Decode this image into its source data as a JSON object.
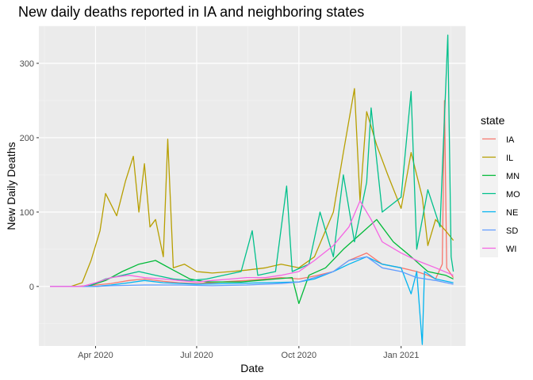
{
  "chart_data": {
    "type": "line",
    "title": "New daily deaths reported in IA and neighboring states",
    "xlabel": "Date",
    "ylabel": "New Daily Deaths",
    "x_ticks": [
      "Apr 2020",
      "Jul 2020",
      "Oct 2020",
      "Jan 2021"
    ],
    "y_ticks": [
      0,
      100,
      200,
      300
    ],
    "xlim": [
      "2020-02-10",
      "2021-02-28"
    ],
    "ylim": [
      -80,
      350
    ],
    "grid": true,
    "legend_title": "state",
    "legend_position": "right",
    "series_note": "approximate weekly/peak readings in data units",
    "series": [
      {
        "name": "IA",
        "color": "#F8766D",
        "points": [
          [
            "2020-02-20",
            0
          ],
          [
            "2020-03-15",
            0
          ],
          [
            "2020-04-01",
            2
          ],
          [
            "2020-04-15",
            4
          ],
          [
            "2020-05-01",
            8
          ],
          [
            "2020-05-15",
            10
          ],
          [
            "2020-06-01",
            7
          ],
          [
            "2020-06-15",
            5
          ],
          [
            "2020-07-01",
            4
          ],
          [
            "2020-07-15",
            5
          ],
          [
            "2020-08-01",
            7
          ],
          [
            "2020-08-15",
            8
          ],
          [
            "2020-09-01",
            10
          ],
          [
            "2020-09-15",
            12
          ],
          [
            "2020-10-01",
            10
          ],
          [
            "2020-10-15",
            14
          ],
          [
            "2020-11-01",
            20
          ],
          [
            "2020-11-15",
            35
          ],
          [
            "2020-12-01",
            45
          ],
          [
            "2020-12-15",
            30
          ],
          [
            "2021-01-01",
            25
          ],
          [
            "2021-01-15",
            20
          ],
          [
            "2021-01-25",
            15
          ],
          [
            "2021-02-01",
            10
          ],
          [
            "2021-02-07",
            30
          ],
          [
            "2021-02-09",
            250
          ],
          [
            "2021-02-11",
            25
          ],
          [
            "2021-02-17",
            12
          ]
        ]
      },
      {
        "name": "IL",
        "color": "#B79F00",
        "points": [
          [
            "2020-02-20",
            0
          ],
          [
            "2020-03-10",
            0
          ],
          [
            "2020-03-20",
            5
          ],
          [
            "2020-03-28",
            35
          ],
          [
            "2020-04-05",
            75
          ],
          [
            "2020-04-10",
            125
          ],
          [
            "2020-04-20",
            95
          ],
          [
            "2020-04-28",
            142
          ],
          [
            "2020-05-05",
            175
          ],
          [
            "2020-05-10",
            100
          ],
          [
            "2020-05-15",
            165
          ],
          [
            "2020-05-20",
            80
          ],
          [
            "2020-05-25",
            90
          ],
          [
            "2020-06-01",
            40
          ],
          [
            "2020-06-05",
            198
          ],
          [
            "2020-06-10",
            25
          ],
          [
            "2020-06-20",
            30
          ],
          [
            "2020-07-01",
            20
          ],
          [
            "2020-07-15",
            18
          ],
          [
            "2020-08-01",
            20
          ],
          [
            "2020-08-15",
            22
          ],
          [
            "2020-09-01",
            25
          ],
          [
            "2020-09-15",
            30
          ],
          [
            "2020-10-01",
            25
          ],
          [
            "2020-10-15",
            40
          ],
          [
            "2020-11-01",
            100
          ],
          [
            "2020-11-10",
            180
          ],
          [
            "2020-11-20",
            266
          ],
          [
            "2020-11-25",
            115
          ],
          [
            "2020-12-01",
            235
          ],
          [
            "2020-12-10",
            190
          ],
          [
            "2020-12-20",
            150
          ],
          [
            "2021-01-01",
            105
          ],
          [
            "2021-01-10",
            180
          ],
          [
            "2021-01-20",
            120
          ],
          [
            "2021-01-25",
            55
          ],
          [
            "2021-02-01",
            90
          ],
          [
            "2021-02-10",
            75
          ],
          [
            "2021-02-17",
            62
          ]
        ]
      },
      {
        "name": "MN",
        "color": "#00BA38",
        "points": [
          [
            "2020-02-20",
            0
          ],
          [
            "2020-03-25",
            0
          ],
          [
            "2020-04-10",
            8
          ],
          [
            "2020-04-25",
            20
          ],
          [
            "2020-05-10",
            30
          ],
          [
            "2020-05-25",
            35
          ],
          [
            "2020-06-10",
            22
          ],
          [
            "2020-06-25",
            10
          ],
          [
            "2020-07-10",
            6
          ],
          [
            "2020-07-25",
            6
          ],
          [
            "2020-08-10",
            6
          ],
          [
            "2020-08-25",
            8
          ],
          [
            "2020-09-10",
            10
          ],
          [
            "2020-09-25",
            12
          ],
          [
            "2020-10-01",
            -23
          ],
          [
            "2020-10-10",
            15
          ],
          [
            "2020-10-25",
            25
          ],
          [
            "2020-11-10",
            50
          ],
          [
            "2020-11-25",
            70
          ],
          [
            "2020-12-10",
            90
          ],
          [
            "2020-12-25",
            60
          ],
          [
            "2021-01-10",
            40
          ],
          [
            "2021-01-25",
            20
          ],
          [
            "2021-02-10",
            15
          ],
          [
            "2021-02-17",
            10
          ]
        ]
      },
      {
        "name": "MO",
        "color": "#00C08B",
        "points": [
          [
            "2020-02-20",
            0
          ],
          [
            "2020-03-25",
            0
          ],
          [
            "2020-04-10",
            10
          ],
          [
            "2020-04-25",
            15
          ],
          [
            "2020-05-10",
            20
          ],
          [
            "2020-05-25",
            15
          ],
          [
            "2020-06-10",
            10
          ],
          [
            "2020-06-25",
            8
          ],
          [
            "2020-07-10",
            10
          ],
          [
            "2020-07-25",
            15
          ],
          [
            "2020-08-10",
            20
          ],
          [
            "2020-08-20",
            75
          ],
          [
            "2020-08-25",
            15
          ],
          [
            "2020-09-10",
            20
          ],
          [
            "2020-09-20",
            135
          ],
          [
            "2020-09-25",
            20
          ],
          [
            "2020-10-10",
            30
          ],
          [
            "2020-10-20",
            100
          ],
          [
            "2020-11-01",
            40
          ],
          [
            "2020-11-10",
            150
          ],
          [
            "2020-11-20",
            60
          ],
          [
            "2020-12-01",
            140
          ],
          [
            "2020-12-05",
            240
          ],
          [
            "2020-12-15",
            100
          ],
          [
            "2021-01-01",
            120
          ],
          [
            "2021-01-10",
            262
          ],
          [
            "2021-01-15",
            50
          ],
          [
            "2021-01-25",
            130
          ],
          [
            "2021-02-05",
            80
          ],
          [
            "2021-02-12",
            338
          ],
          [
            "2021-02-15",
            40
          ],
          [
            "2021-02-17",
            20
          ]
        ]
      },
      {
        "name": "NE",
        "color": "#00B4F0",
        "points": [
          [
            "2020-02-20",
            0
          ],
          [
            "2020-04-01",
            0
          ],
          [
            "2020-04-15",
            2
          ],
          [
            "2020-05-01",
            5
          ],
          [
            "2020-05-15",
            8
          ],
          [
            "2020-06-01",
            5
          ],
          [
            "2020-07-01",
            3
          ],
          [
            "2020-08-01",
            4
          ],
          [
            "2020-09-01",
            5
          ],
          [
            "2020-10-01",
            6
          ],
          [
            "2020-10-15",
            10
          ],
          [
            "2020-11-01",
            20
          ],
          [
            "2020-11-15",
            30
          ],
          [
            "2020-12-01",
            40
          ],
          [
            "2020-12-15",
            30
          ],
          [
            "2021-01-01",
            25
          ],
          [
            "2021-01-10",
            -10
          ],
          [
            "2021-01-15",
            20
          ],
          [
            "2021-01-20",
            -78
          ],
          [
            "2021-01-22",
            20
          ],
          [
            "2021-02-01",
            10
          ],
          [
            "2021-02-17",
            5
          ]
        ]
      },
      {
        "name": "SD",
        "color": "#619CFF",
        "points": [
          [
            "2020-02-20",
            0
          ],
          [
            "2020-04-01",
            0
          ],
          [
            "2020-04-15",
            1
          ],
          [
            "2020-05-15",
            2
          ],
          [
            "2020-06-15",
            2
          ],
          [
            "2020-07-15",
            1
          ],
          [
            "2020-08-15",
            2
          ],
          [
            "2020-09-15",
            4
          ],
          [
            "2020-10-01",
            6
          ],
          [
            "2020-10-15",
            12
          ],
          [
            "2020-11-01",
            20
          ],
          [
            "2020-11-15",
            35
          ],
          [
            "2020-12-01",
            40
          ],
          [
            "2020-12-15",
            25
          ],
          [
            "2021-01-01",
            20
          ],
          [
            "2021-01-15",
            12
          ],
          [
            "2021-02-01",
            8
          ],
          [
            "2021-02-17",
            3
          ]
        ]
      },
      {
        "name": "WI",
        "color": "#F564E3",
        "points": [
          [
            "2020-02-20",
            0
          ],
          [
            "2020-03-20",
            0
          ],
          [
            "2020-04-01",
            5
          ],
          [
            "2020-04-15",
            12
          ],
          [
            "2020-05-01",
            15
          ],
          [
            "2020-05-15",
            12
          ],
          [
            "2020-06-01",
            10
          ],
          [
            "2020-06-15",
            8
          ],
          [
            "2020-07-01",
            6
          ],
          [
            "2020-07-15",
            8
          ],
          [
            "2020-08-01",
            10
          ],
          [
            "2020-08-15",
            12
          ],
          [
            "2020-09-01",
            12
          ],
          [
            "2020-09-15",
            15
          ],
          [
            "2020-10-01",
            20
          ],
          [
            "2020-10-15",
            35
          ],
          [
            "2020-11-01",
            55
          ],
          [
            "2020-11-15",
            80
          ],
          [
            "2020-11-25",
            115
          ],
          [
            "2020-12-05",
            90
          ],
          [
            "2020-12-15",
            60
          ],
          [
            "2021-01-01",
            45
          ],
          [
            "2021-01-15",
            35
          ],
          [
            "2021-02-01",
            25
          ],
          [
            "2021-02-17",
            15
          ]
        ]
      }
    ]
  }
}
